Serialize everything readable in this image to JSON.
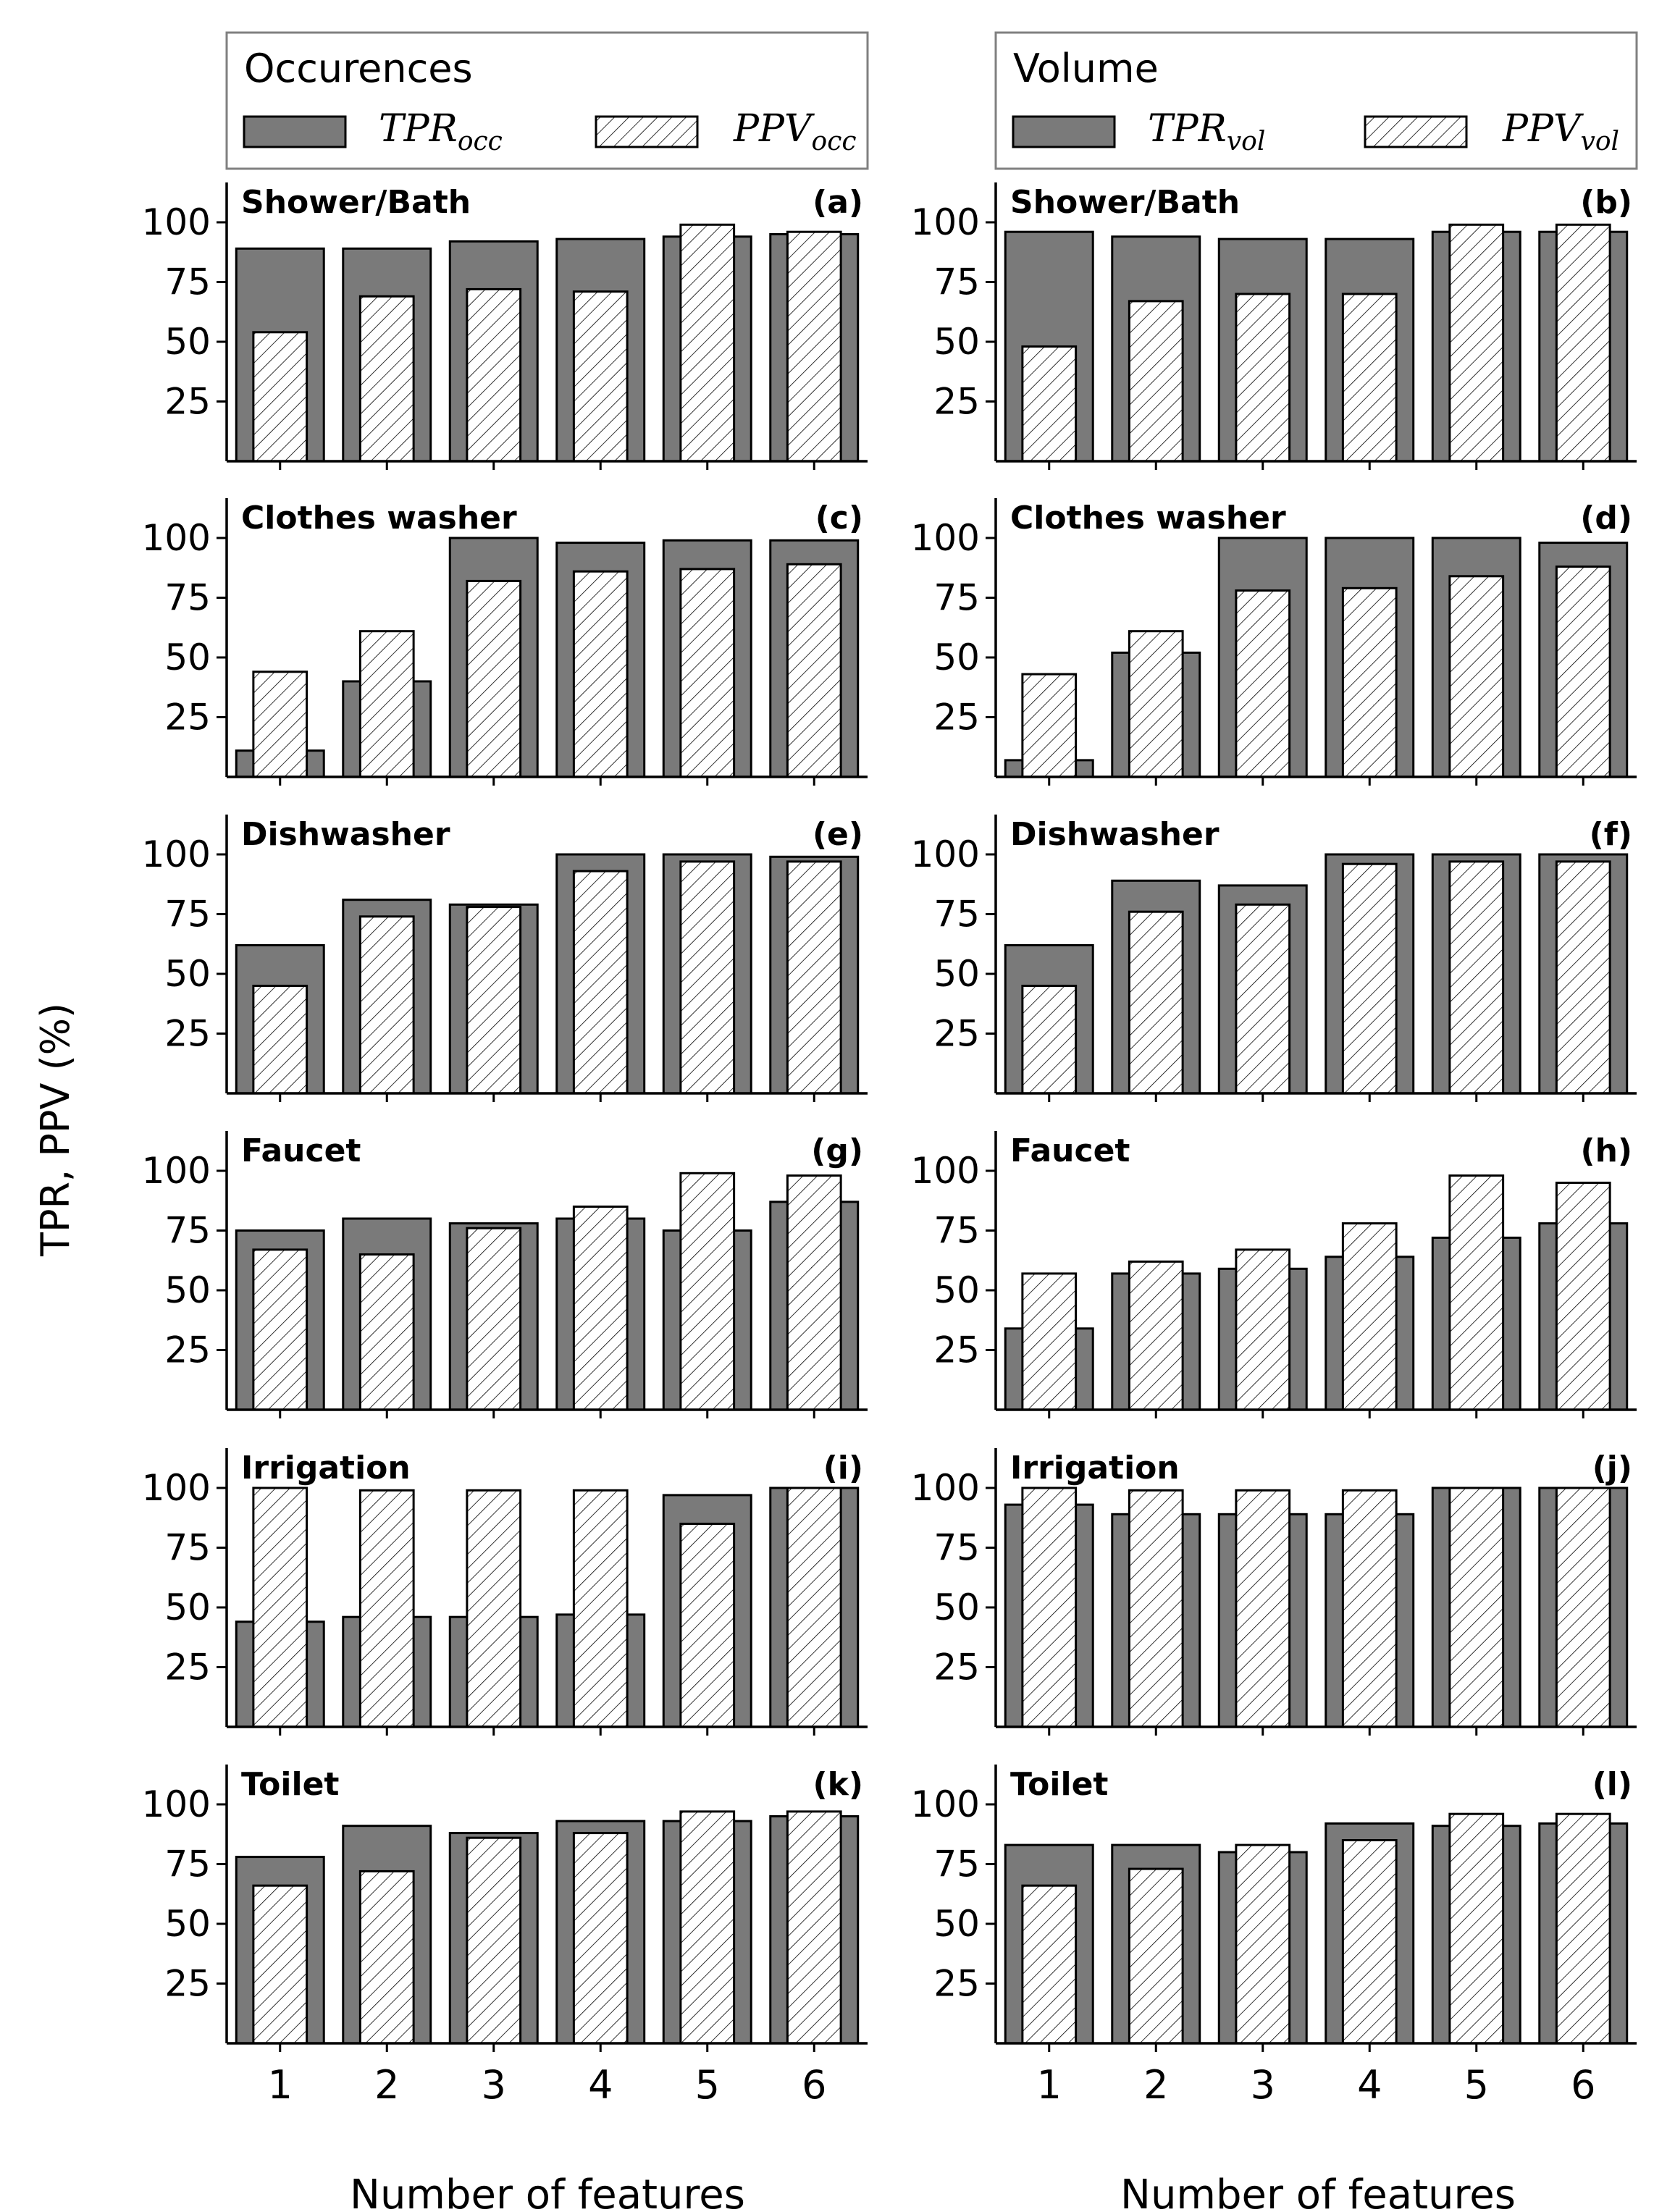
{
  "figure": {
    "ylabel": "TPR, PPV (%)",
    "xlabel": "Number of features",
    "ytick_labels": [
      "25",
      "50",
      "75",
      "100"
    ],
    "xtick_labels": [
      "1",
      "2",
      "3",
      "4",
      "5",
      "6"
    ],
    "colors": {
      "tpr_fill": "#7a7a7a",
      "ppv_fill": "#ffffff",
      "edge": "#000000"
    }
  },
  "legends": [
    {
      "title": "Occurences",
      "tpr_base": "TPR",
      "tpr_sub": "occ",
      "ppv_base": "PPV",
      "ppv_sub": "occ"
    },
    {
      "title": "Volume",
      "tpr_base": "TPR",
      "tpr_sub": "vol",
      "ppv_base": "PPV",
      "ppv_sub": "vol"
    }
  ],
  "chart_data": [
    {
      "type": "bar",
      "panel": "(a)",
      "title": "Shower/Bath",
      "metric": "Occurences",
      "categories": [
        "1",
        "2",
        "3",
        "4",
        "5",
        "6"
      ],
      "ylim": [
        0,
        115
      ],
      "xlabel": "Number of features",
      "ylabel": "TPR, PPV (%)",
      "series": [
        {
          "name": "TPR_occ",
          "values": [
            89,
            89,
            92,
            93,
            94,
            95
          ]
        },
        {
          "name": "PPV_occ",
          "values": [
            54,
            69,
            72,
            71,
            99,
            96
          ]
        }
      ]
    },
    {
      "type": "bar",
      "panel": "(b)",
      "title": "Shower/Bath",
      "metric": "Volume",
      "categories": [
        "1",
        "2",
        "3",
        "4",
        "5",
        "6"
      ],
      "ylim": [
        0,
        115
      ],
      "xlabel": "Number of features",
      "ylabel": "TPR, PPV (%)",
      "series": [
        {
          "name": "TPR_vol",
          "values": [
            96,
            94,
            93,
            93,
            96,
            96
          ]
        },
        {
          "name": "PPV_vol",
          "values": [
            48,
            67,
            70,
            70,
            99,
            99
          ]
        }
      ]
    },
    {
      "type": "bar",
      "panel": "(c)",
      "title": "Clothes washer",
      "metric": "Occurences",
      "categories": [
        "1",
        "2",
        "3",
        "4",
        "5",
        "6"
      ],
      "ylim": [
        0,
        115
      ],
      "xlabel": "Number of features",
      "ylabel": "TPR, PPV (%)",
      "series": [
        {
          "name": "TPR_occ",
          "values": [
            11,
            40,
            100,
            98,
            99,
            99
          ]
        },
        {
          "name": "PPV_occ",
          "values": [
            44,
            61,
            82,
            86,
            87,
            89
          ]
        }
      ]
    },
    {
      "type": "bar",
      "panel": "(d)",
      "title": "Clothes washer",
      "metric": "Volume",
      "categories": [
        "1",
        "2",
        "3",
        "4",
        "5",
        "6"
      ],
      "ylim": [
        0,
        115
      ],
      "xlabel": "Number of features",
      "ylabel": "TPR, PPV (%)",
      "series": [
        {
          "name": "TPR_vol",
          "values": [
            7,
            52,
            100,
            100,
            100,
            98
          ]
        },
        {
          "name": "PPV_vol",
          "values": [
            43,
            61,
            78,
            79,
            84,
            88
          ]
        }
      ]
    },
    {
      "type": "bar",
      "panel": "(e)",
      "title": "Dishwasher",
      "metric": "Occurences",
      "categories": [
        "1",
        "2",
        "3",
        "4",
        "5",
        "6"
      ],
      "ylim": [
        0,
        115
      ],
      "xlabel": "Number of features",
      "ylabel": "TPR, PPV (%)",
      "series": [
        {
          "name": "TPR_occ",
          "values": [
            62,
            81,
            79,
            100,
            100,
            99
          ]
        },
        {
          "name": "PPV_occ",
          "values": [
            45,
            74,
            78,
            93,
            97,
            97
          ]
        }
      ]
    },
    {
      "type": "bar",
      "panel": "(f)",
      "title": "Dishwasher",
      "metric": "Volume",
      "categories": [
        "1",
        "2",
        "3",
        "4",
        "5",
        "6"
      ],
      "ylim": [
        0,
        115
      ],
      "xlabel": "Number of features",
      "ylabel": "TPR, PPV (%)",
      "series": [
        {
          "name": "TPR_vol",
          "values": [
            62,
            89,
            87,
            100,
            100,
            100
          ]
        },
        {
          "name": "PPV_vol",
          "values": [
            45,
            76,
            79,
            96,
            97,
            97
          ]
        }
      ]
    },
    {
      "type": "bar",
      "panel": "(g)",
      "title": "Faucet",
      "metric": "Occurences",
      "categories": [
        "1",
        "2",
        "3",
        "4",
        "5",
        "6"
      ],
      "ylim": [
        0,
        115
      ],
      "xlabel": "Number of features",
      "ylabel": "TPR, PPV (%)",
      "series": [
        {
          "name": "TPR_occ",
          "values": [
            75,
            80,
            78,
            80,
            75,
            87
          ]
        },
        {
          "name": "PPV_occ",
          "values": [
            67,
            65,
            76,
            85,
            99,
            98
          ]
        }
      ]
    },
    {
      "type": "bar",
      "panel": "(h)",
      "title": "Faucet",
      "metric": "Volume",
      "categories": [
        "1",
        "2",
        "3",
        "4",
        "5",
        "6"
      ],
      "ylim": [
        0,
        115
      ],
      "xlabel": "Number of features",
      "ylabel": "TPR, PPV (%)",
      "series": [
        {
          "name": "TPR_vol",
          "values": [
            34,
            57,
            59,
            64,
            72,
            78
          ]
        },
        {
          "name": "PPV_vol",
          "values": [
            57,
            62,
            67,
            78,
            98,
            95
          ]
        }
      ]
    },
    {
      "type": "bar",
      "panel": "(i)",
      "title": "Irrigation",
      "metric": "Occurences",
      "categories": [
        "1",
        "2",
        "3",
        "4",
        "5",
        "6"
      ],
      "ylim": [
        0,
        115
      ],
      "xlabel": "Number of features",
      "ylabel": "TPR, PPV (%)",
      "series": [
        {
          "name": "TPR_occ",
          "values": [
            44,
            46,
            46,
            47,
            97,
            100
          ]
        },
        {
          "name": "PPV_occ",
          "values": [
            100,
            99,
            99,
            99,
            85,
            100
          ]
        }
      ]
    },
    {
      "type": "bar",
      "panel": "(j)",
      "title": "Irrigation",
      "metric": "Volume",
      "categories": [
        "1",
        "2",
        "3",
        "4",
        "5",
        "6"
      ],
      "ylim": [
        0,
        115
      ],
      "xlabel": "Number of features",
      "ylabel": "TPR, PPV (%)",
      "series": [
        {
          "name": "TPR_vol",
          "values": [
            93,
            89,
            89,
            89,
            100,
            100
          ]
        },
        {
          "name": "PPV_vol",
          "values": [
            100,
            99,
            99,
            99,
            100,
            100
          ]
        }
      ]
    },
    {
      "type": "bar",
      "panel": "(k)",
      "title": "Toilet",
      "metric": "Occurences",
      "categories": [
        "1",
        "2",
        "3",
        "4",
        "5",
        "6"
      ],
      "ylim": [
        0,
        115
      ],
      "xlabel": "Number of features",
      "ylabel": "TPR, PPV (%)",
      "series": [
        {
          "name": "TPR_occ",
          "values": [
            78,
            91,
            88,
            93,
            93,
            95
          ]
        },
        {
          "name": "PPV_occ",
          "values": [
            66,
            72,
            86,
            88,
            97,
            97
          ]
        }
      ]
    },
    {
      "type": "bar",
      "panel": "(l)",
      "title": "Toilet",
      "metric": "Volume",
      "categories": [
        "1",
        "2",
        "3",
        "4",
        "5",
        "6"
      ],
      "ylim": [
        0,
        115
      ],
      "xlabel": "Number of features",
      "ylabel": "TPR, PPV (%)",
      "series": [
        {
          "name": "TPR_vol",
          "values": [
            83,
            83,
            80,
            92,
            91,
            92
          ]
        },
        {
          "name": "PPV_vol",
          "values": [
            66,
            73,
            83,
            85,
            96,
            96
          ]
        }
      ]
    }
  ]
}
